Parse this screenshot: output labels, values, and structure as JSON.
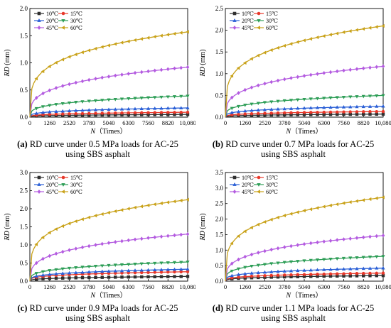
{
  "chart_data": [
    {
      "type": "line",
      "panel_label": "(a)",
      "caption_text": "RD curve under 0.5 MPa loads for AC-25",
      "caption_line2": "using SBS asphalt",
      "xlabel_var": "N",
      "xlabel_unit": "（Times）",
      "ylabel_var": "RD",
      "ylabel_unit": " (mm)",
      "xlim": [
        0,
        10080
      ],
      "ylim": [
        0,
        2.0
      ],
      "xticks": [
        0,
        1260,
        2520,
        3780,
        5040,
        6300,
        7560,
        8820,
        10080
      ],
      "xtick_labels": [
        "0",
        "1260",
        "2520",
        "3780",
        "5040",
        "6300",
        "7560",
        "8820",
        "10,080"
      ],
      "yticks": [
        0.0,
        0.5,
        1.0,
        1.5,
        2.0
      ],
      "ytick_labels": [
        "0.0",
        "0.5",
        "1.0",
        "1.5",
        "2.0"
      ],
      "legend_position": "top-left",
      "series": [
        {
          "name": "10℃",
          "color": "#303030",
          "marker": "square",
          "final": 0.05,
          "k": 0.28
        },
        {
          "name": "15℃",
          "color": "#e8382a",
          "marker": "circle",
          "final": 0.09,
          "k": 0.28
        },
        {
          "name": "20℃",
          "color": "#2a5fd6",
          "marker": "triangle-up",
          "final": 0.17,
          "k": 0.28
        },
        {
          "name": "30℃",
          "color": "#2e9e57",
          "marker": "triangle-down",
          "final": 0.39,
          "k": 0.28
        },
        {
          "name": "45℃",
          "color": "#b45ce0",
          "marker": "diamond",
          "final": 0.92,
          "k": 0.3
        },
        {
          "name": "60℃",
          "color": "#c9a21a",
          "marker": "triangle-left",
          "final": 1.57,
          "k": 0.25
        }
      ]
    },
    {
      "type": "line",
      "panel_label": "(b)",
      "caption_text": "RD curve under 0.7 MPa loads for AC-25",
      "caption_line2": "using SBS asphalt",
      "xlabel_var": "N",
      "xlabel_unit": "（Times）",
      "ylabel_var": "RD",
      "ylabel_unit": " (mm)",
      "xlim": [
        0,
        10080
      ],
      "ylim": [
        0,
        2.5
      ],
      "xticks": [
        0,
        1260,
        2520,
        3780,
        5040,
        6300,
        7560,
        8820,
        10080
      ],
      "xtick_labels": [
        "0",
        "1260",
        "2520",
        "3780",
        "5040",
        "6300",
        "7560",
        "8820",
        "10,080"
      ],
      "yticks": [
        0.0,
        0.5,
        1.0,
        1.5,
        2.0,
        2.5
      ],
      "ytick_labels": [
        "0.0",
        "0.5",
        "1.0",
        "1.5",
        "2.0",
        "2.5"
      ],
      "legend_position": "top-left",
      "series": [
        {
          "name": "10℃",
          "color": "#303030",
          "marker": "square",
          "final": 0.07,
          "k": 0.28
        },
        {
          "name": "15℃",
          "color": "#e8382a",
          "marker": "circle",
          "final": 0.13,
          "k": 0.28
        },
        {
          "name": "20℃",
          "color": "#2a5fd6",
          "marker": "triangle-up",
          "final": 0.25,
          "k": 0.28
        },
        {
          "name": "30℃",
          "color": "#2e9e57",
          "marker": "triangle-down",
          "final": 0.5,
          "k": 0.28
        },
        {
          "name": "45℃",
          "color": "#b45ce0",
          "marker": "diamond",
          "final": 1.17,
          "k": 0.3
        },
        {
          "name": "60℃",
          "color": "#c9a21a",
          "marker": "triangle-left",
          "final": 2.1,
          "k": 0.25
        }
      ]
    },
    {
      "type": "line",
      "panel_label": "(c)",
      "caption_text": "RD curve under 0.9 MPa loads for AC-25",
      "caption_line2": "using SBS asphalt",
      "xlabel_var": "N",
      "xlabel_unit": "（Times）",
      "ylabel_var": "RD",
      "ylabel_unit": " (mm)",
      "xlim": [
        0,
        10080
      ],
      "ylim": [
        0,
        3.0
      ],
      "xticks": [
        0,
        1260,
        2520,
        3780,
        5040,
        6300,
        7560,
        8820,
        10080
      ],
      "xtick_labels": [
        "0",
        "1260",
        "2520",
        "3780",
        "5040",
        "6300",
        "7560",
        "8820",
        "10,080"
      ],
      "yticks": [
        0.0,
        0.5,
        1.0,
        1.5,
        2.0,
        2.5,
        3.0
      ],
      "ytick_labels": [
        "0.0",
        "0.5",
        "1.0",
        "1.5",
        "2.0",
        "2.5",
        "3.0"
      ],
      "legend_position": "top-left",
      "series": [
        {
          "name": "10℃",
          "color": "#303030",
          "marker": "square",
          "final": 0.13,
          "k": 0.28
        },
        {
          "name": "15℃",
          "color": "#e8382a",
          "marker": "circle",
          "final": 0.26,
          "k": 0.28
        },
        {
          "name": "20℃",
          "color": "#2a5fd6",
          "marker": "triangle-up",
          "final": 0.33,
          "k": 0.28
        },
        {
          "name": "30℃",
          "color": "#2e9e57",
          "marker": "triangle-down",
          "final": 0.53,
          "k": 0.28
        },
        {
          "name": "45℃",
          "color": "#b45ce0",
          "marker": "diamond",
          "final": 1.3,
          "k": 0.3
        },
        {
          "name": "60℃",
          "color": "#c9a21a",
          "marker": "triangle-left",
          "final": 2.25,
          "k": 0.25
        }
      ]
    },
    {
      "type": "line",
      "panel_label": "(d)",
      "caption_text": "RD curve under 1.1 MPa loads for AC-25",
      "caption_line2": "using SBS asphalt",
      "xlabel_var": "N",
      "xlabel_unit": "（Times）",
      "ylabel_var": "RD",
      "ylabel_unit": " (mm)",
      "xlim": [
        0,
        10080
      ],
      "ylim": [
        0,
        3.5
      ],
      "xticks": [
        0,
        1260,
        2520,
        3780,
        5040,
        6300,
        7560,
        8820,
        10080
      ],
      "xtick_labels": [
        "0",
        "1260",
        "2520",
        "3780",
        "5040",
        "6300",
        "7560",
        "8820",
        "10,080"
      ],
      "yticks": [
        0.0,
        0.5,
        1.0,
        1.5,
        2.0,
        2.5,
        3.0,
        3.5
      ],
      "ytick_labels": [
        "0.0",
        "0.5",
        "1.0",
        "1.5",
        "2.0",
        "2.5",
        "3.0",
        "3.5"
      ],
      "legend_position": "top-left",
      "series": [
        {
          "name": "10℃",
          "color": "#303030",
          "marker": "square",
          "final": 0.18,
          "k": 0.28
        },
        {
          "name": "15℃",
          "color": "#e8382a",
          "marker": "circle",
          "final": 0.26,
          "k": 0.28
        },
        {
          "name": "20℃",
          "color": "#2a5fd6",
          "marker": "triangle-up",
          "final": 0.42,
          "k": 0.28
        },
        {
          "name": "30℃",
          "color": "#2e9e57",
          "marker": "triangle-down",
          "final": 0.8,
          "k": 0.28
        },
        {
          "name": "45℃",
          "color": "#b45ce0",
          "marker": "diamond",
          "final": 1.47,
          "k": 0.3
        },
        {
          "name": "60℃",
          "color": "#c9a21a",
          "marker": "triangle-left",
          "final": 2.7,
          "k": 0.25
        }
      ]
    }
  ]
}
